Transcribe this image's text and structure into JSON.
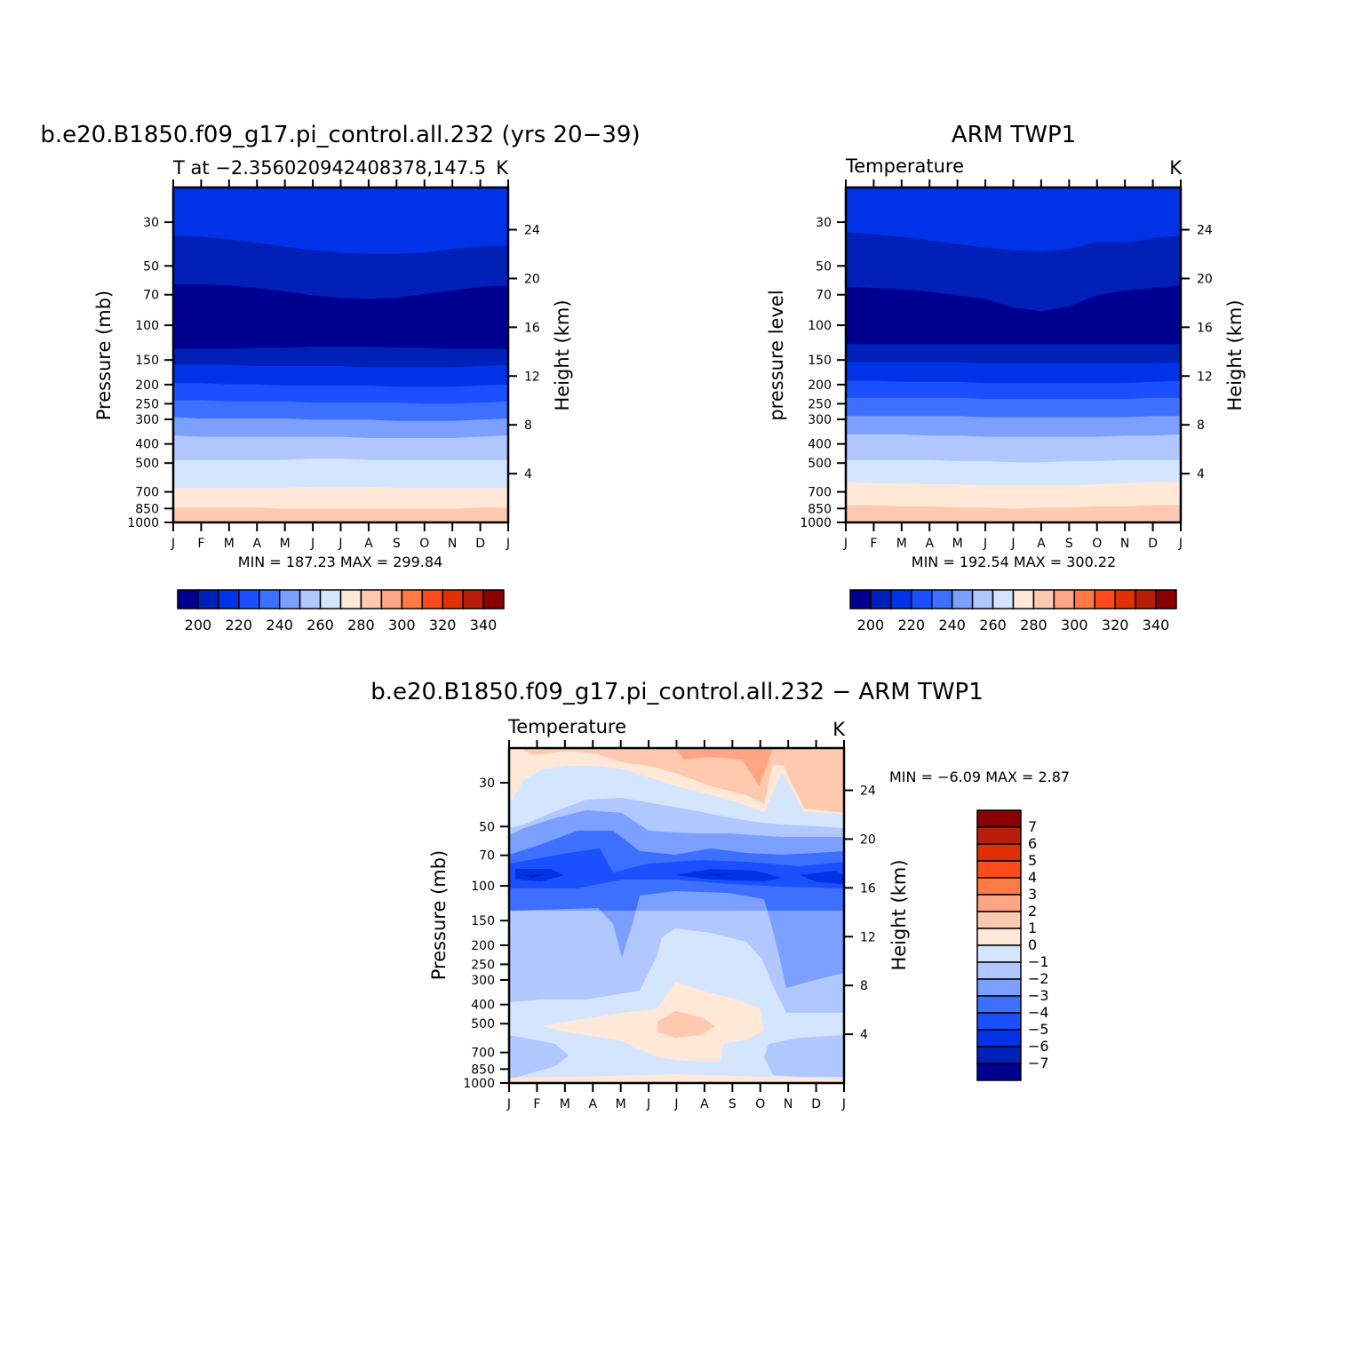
{
  "chart_data": [
    {
      "type": "heatmap",
      "title": "b.e20.B1850.f09_g17.pi_control.all.232 (yrs 20−39)",
      "subtitle_left": "T at −2.356020942408378,147.5",
      "subtitle_right": "K",
      "ylabel": "Pressure (mb)",
      "ylabel_right": "Height (km)",
      "x_ticks": [
        "J",
        "F",
        "M",
        "A",
        "M",
        "J",
        "J",
        "A",
        "S",
        "O",
        "N",
        "D",
        "J"
      ],
      "y_ticks": [
        30,
        50,
        70,
        100,
        150,
        200,
        250,
        300,
        400,
        500,
        700,
        850,
        1000
      ],
      "y_ticks_right": [
        24,
        20,
        16,
        12,
        8,
        4
      ],
      "ylim_mb": [
        1000,
        20
      ],
      "ylog": true,
      "min_label": "MIN = 187.23 MAX = 299.84",
      "levels": [
        200,
        210,
        220,
        230,
        240,
        250,
        260,
        270,
        280,
        290,
        300,
        310,
        320,
        330,
        340
      ],
      "colorbar_labels": [
        "200",
        "220",
        "240",
        "260",
        "280",
        "300",
        "320",
        "340"
      ],
      "boundaries": [
        [
          23.5,
          23.4,
          23.2,
          22.9,
          22.6,
          22.3,
          22.1,
          22.0,
          22.0,
          22.1,
          22.4,
          22.6,
          22.7
        ],
        [
          19.5,
          19.5,
          19.4,
          19.2,
          18.9,
          18.6,
          18.4,
          18.3,
          18.4,
          18.7,
          19.0,
          19.3,
          19.4
        ],
        [
          14.2,
          14.2,
          14.2,
          14.3,
          14.3,
          14.4,
          14.4,
          14.4,
          14.3,
          14.3,
          14.2,
          14.2,
          14.2
        ],
        [
          12.9,
          12.9,
          12.9,
          12.8,
          12.8,
          12.8,
          12.8,
          12.7,
          12.7,
          12.7,
          12.7,
          12.8,
          12.9
        ],
        [
          11.4,
          11.4,
          11.3,
          11.3,
          11.2,
          11.2,
          11.2,
          11.2,
          11.1,
          11.1,
          11.1,
          11.2,
          11.3
        ],
        [
          10.0,
          10.0,
          9.9,
          9.9,
          9.9,
          9.8,
          9.8,
          9.8,
          9.8,
          9.7,
          9.7,
          9.8,
          9.9
        ],
        [
          8.6,
          8.5,
          8.5,
          8.5,
          8.5,
          8.4,
          8.4,
          8.4,
          8.3,
          8.3,
          8.3,
          8.4,
          8.5
        ],
        [
          7.1,
          7.0,
          7.0,
          7.0,
          7.0,
          7.0,
          7.0,
          6.9,
          6.9,
          6.9,
          6.9,
          7.0,
          7.1
        ],
        [
          5.1,
          5.1,
          5.1,
          5.1,
          5.1,
          5.2,
          5.2,
          5.1,
          5.1,
          5.1,
          5.1,
          5.1,
          5.1
        ],
        [
          2.8,
          2.8,
          2.8,
          2.8,
          2.8,
          2.9,
          2.9,
          2.9,
          2.8,
          2.8,
          2.8,
          2.8,
          2.8
        ],
        [
          1.2,
          1.2,
          1.2,
          1.2,
          1.1,
          1.1,
          1.1,
          1.1,
          1.1,
          1.1,
          1.1,
          1.2,
          1.2
        ]
      ],
      "band_colors": [
        "#0033e8",
        "#0020b8",
        "#000090",
        "#0020b8",
        "#0033e8",
        "#1a50ff",
        "#3d70ff",
        "#7ba0ff",
        "#b0c8ff",
        "#d4e6ff",
        "#ffe8d8",
        "#ffc9b0",
        "#ffa585"
      ]
    },
    {
      "type": "heatmap",
      "title": "ARM TWP1",
      "subtitle_left": "Temperature",
      "subtitle_right": "K",
      "ylabel": "pressure level",
      "ylabel_right": "Height (km)",
      "x_ticks": [
        "J",
        "F",
        "M",
        "A",
        "M",
        "J",
        "J",
        "A",
        "S",
        "O",
        "N",
        "D",
        "J"
      ],
      "y_ticks": [
        30,
        50,
        70,
        100,
        150,
        200,
        250,
        300,
        400,
        500,
        700,
        850,
        1000
      ],
      "y_ticks_right": [
        24,
        20,
        16,
        12,
        8,
        4
      ],
      "ylim_mb": [
        1000,
        20
      ],
      "ylog": true,
      "min_label": "MIN = 192.54 MAX = 300.22",
      "levels": [
        200,
        210,
        220,
        230,
        240,
        250,
        260,
        270,
        280,
        290,
        300,
        310,
        320,
        330,
        340
      ],
      "colorbar_labels": [
        "200",
        "220",
        "240",
        "260",
        "280",
        "300",
        "320",
        "340"
      ],
      "boundaries": [
        [
          23.8,
          23.6,
          23.4,
          23.1,
          22.8,
          22.5,
          22.3,
          22.2,
          22.4,
          23.0,
          22.9,
          23.3,
          23.5
        ],
        [
          19.3,
          19.2,
          19.1,
          18.9,
          18.6,
          18.3,
          17.6,
          17.3,
          17.7,
          18.6,
          19.0,
          19.2,
          19.4
        ],
        [
          14.6,
          14.6,
          14.6,
          14.6,
          14.6,
          14.6,
          14.6,
          14.6,
          14.6,
          14.6,
          14.6,
          14.6,
          14.6
        ],
        [
          13.1,
          13.1,
          13.1,
          13.1,
          13.1,
          13.0,
          13.0,
          13.0,
          13.0,
          13.0,
          13.0,
          13.0,
          13.1
        ],
        [
          11.6,
          11.6,
          11.5,
          11.5,
          11.5,
          11.4,
          11.4,
          11.4,
          11.4,
          11.4,
          11.4,
          11.5,
          11.6
        ],
        [
          10.2,
          10.2,
          10.2,
          10.2,
          10.2,
          10.1,
          10.1,
          10.1,
          10.1,
          10.1,
          10.1,
          10.2,
          10.2
        ],
        [
          8.7,
          8.7,
          8.7,
          8.7,
          8.7,
          8.6,
          8.6,
          8.6,
          8.6,
          8.6,
          8.6,
          8.7,
          8.7
        ],
        [
          7.2,
          7.2,
          7.2,
          7.1,
          7.1,
          7.0,
          7.0,
          7.0,
          7.0,
          7.0,
          7.1,
          7.1,
          7.2
        ],
        [
          5.1,
          5.1,
          5.1,
          5.1,
          5.0,
          5.0,
          4.9,
          4.9,
          5.0,
          5.0,
          5.1,
          5.1,
          5.1
        ],
        [
          3.3,
          3.2,
          3.2,
          3.1,
          3.1,
          3.0,
          3.0,
          3.0,
          3.0,
          3.1,
          3.2,
          3.3,
          3.3
        ],
        [
          1.4,
          1.4,
          1.3,
          1.3,
          1.2,
          1.2,
          1.1,
          1.2,
          1.2,
          1.3,
          1.3,
          1.4,
          1.4
        ]
      ],
      "band_colors": [
        "#0033e8",
        "#0020b8",
        "#000090",
        "#0020b8",
        "#0033e8",
        "#1a50ff",
        "#3d70ff",
        "#7ba0ff",
        "#b0c8ff",
        "#d4e6ff",
        "#ffe8d8",
        "#ffc9b0",
        "#ffa585"
      ]
    },
    {
      "type": "heatmap",
      "title": "b.e20.B1850.f09_g17.pi_control.all.232 − ARM TWP1",
      "subtitle_left": "Temperature",
      "subtitle_right": "K",
      "ylabel": "Pressure (mb)",
      "ylabel_right": "Height (km)",
      "x_ticks": [
        "J",
        "F",
        "M",
        "A",
        "M",
        "J",
        "J",
        "A",
        "S",
        "O",
        "N",
        "D",
        "J"
      ],
      "y_ticks": [
        30,
        50,
        70,
        100,
        150,
        200,
        250,
        300,
        400,
        500,
        700,
        850,
        1000
      ],
      "y_ticks_right": [
        24,
        20,
        16,
        12,
        8,
        4
      ],
      "ylim_mb": [
        1000,
        20
      ],
      "ylog": true,
      "min_label": "MIN = −6.09 MAX = 2.87",
      "levels": [
        -7,
        -6,
        -5,
        -4,
        -3,
        -2,
        -1,
        0,
        1,
        2,
        3,
        4,
        5,
        6,
        7
      ],
      "colorbar_labels": [
        "7",
        "6",
        "5",
        "4",
        "3",
        "2",
        "1",
        "0",
        "−1",
        "−2",
        "−3",
        "−4",
        "−5",
        "−6",
        "−7"
      ]
    }
  ]
}
